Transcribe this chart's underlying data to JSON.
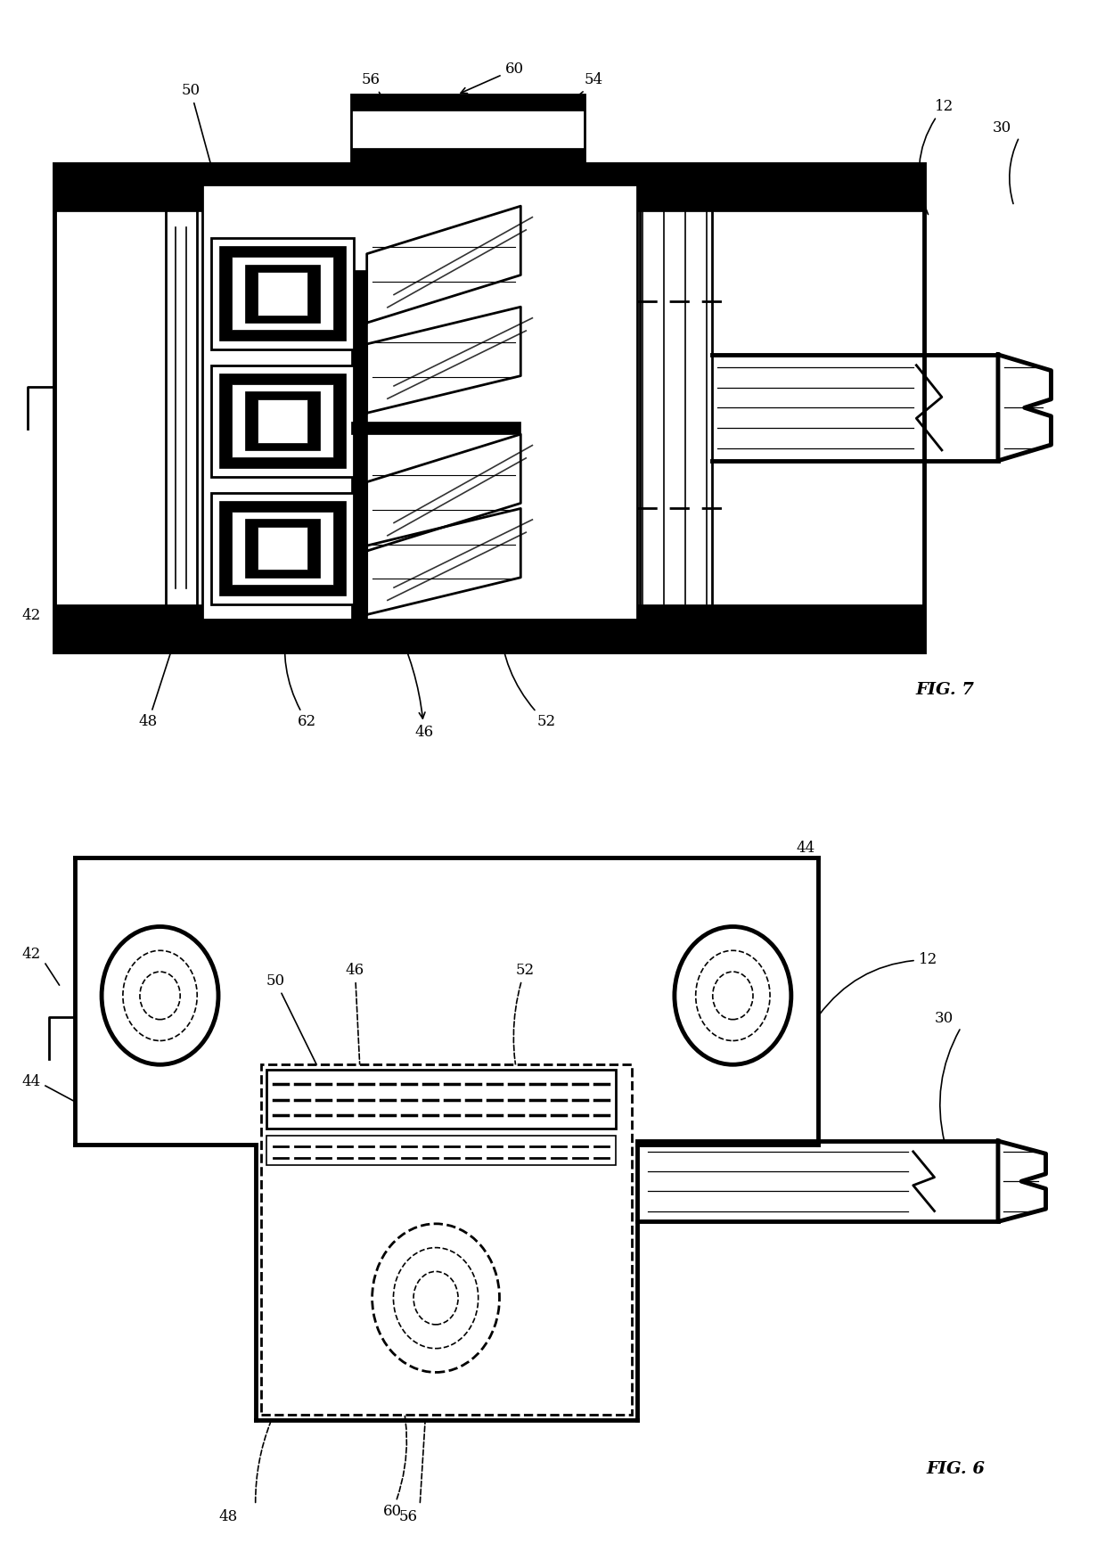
{
  "fig_width": 12.4,
  "fig_height": 17.59,
  "bg_color": "#ffffff",
  "lc": "#000000",
  "lw_thick": 3.5,
  "lw_med": 2.0,
  "lw_thin": 1.2,
  "label_fs": 12
}
